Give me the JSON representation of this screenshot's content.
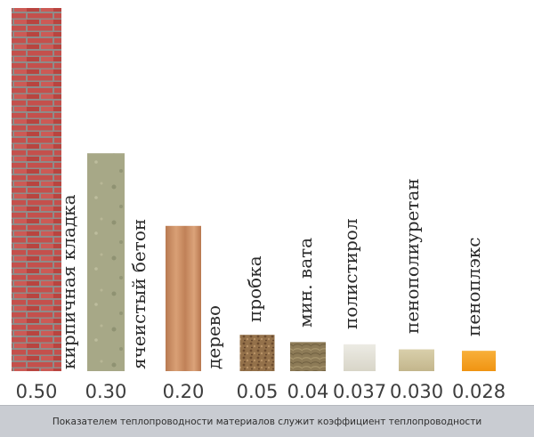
{
  "chart_data": {
    "type": "bar",
    "categories": [
      "кирпичная кладка",
      "ячеистый бетон",
      "дерево",
      "пробка",
      "мин. вата",
      "полистирол",
      "пенополиуретан",
      "пеноплэкс"
    ],
    "values": [
      0.5,
      0.3,
      0.2,
      0.05,
      0.04,
      0.037,
      0.03,
      0.028
    ],
    "value_labels": [
      "0.50",
      "0.30",
      "0.20",
      "0.05",
      "0.04",
      "0.037",
      "0.030",
      "0.028"
    ],
    "bar_textures": [
      "brick",
      "aerated-concrete",
      "wood",
      "cork",
      "mineral-wool",
      "polystyrene",
      "polyurethane-foam",
      "penoplex"
    ],
    "colors": [
      "#c2514a",
      "#a9a98a",
      "#c98c5e",
      "#8f6a45",
      "#8e7c57",
      "#e4e1d6",
      "#cfc39c",
      "#f5a120"
    ],
    "grid": false,
    "legend": "none"
  },
  "caption": "Показателем теплопроводности материалов служит коэффициент теплопроводности"
}
